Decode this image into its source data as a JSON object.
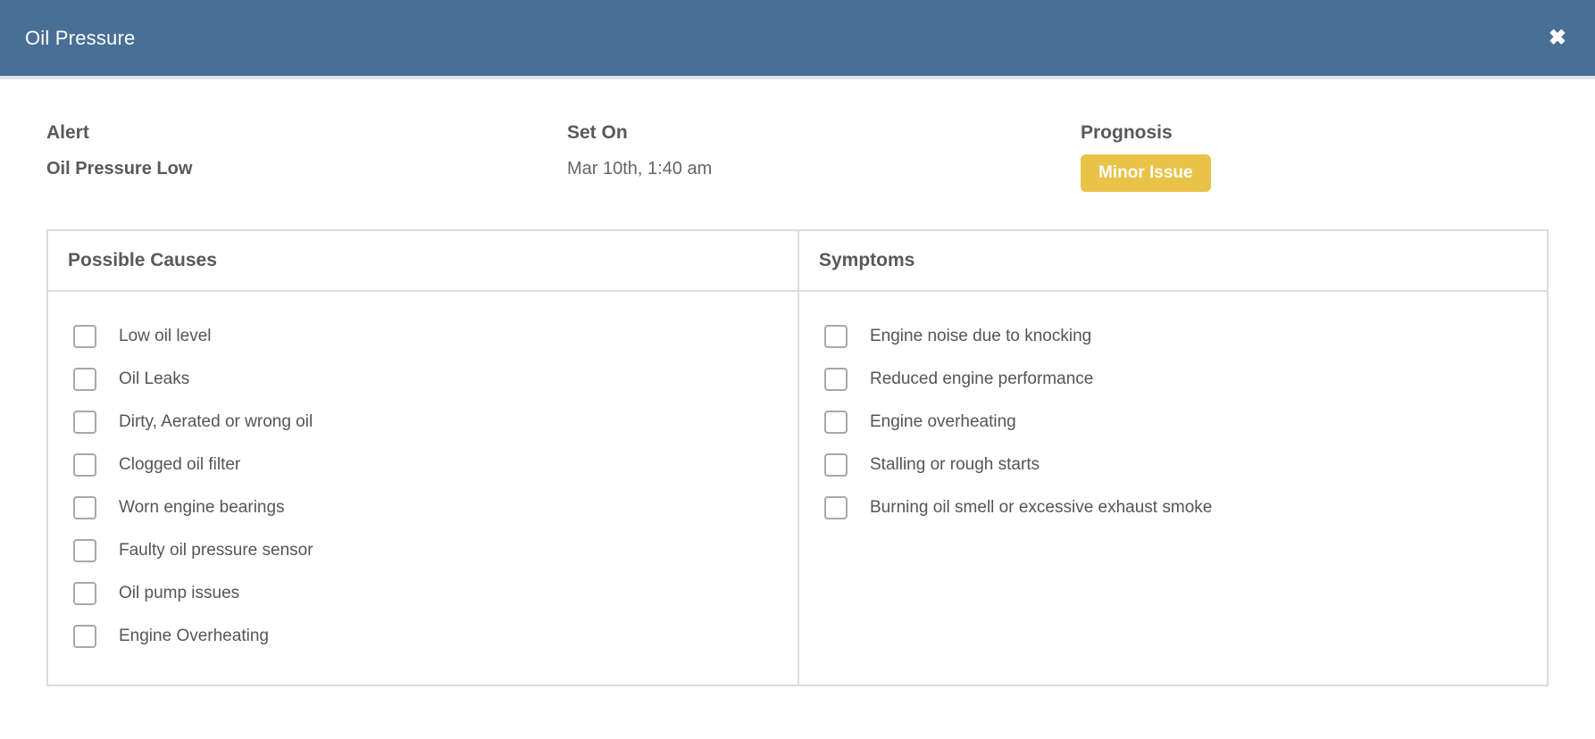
{
  "header": {
    "title": "Oil Pressure",
    "close_icon": "✖"
  },
  "info": {
    "alert_label": "Alert",
    "alert_value": "Oil Pressure Low",
    "set_on_label": "Set On",
    "set_on_value": "Mar 10th, 1:40 am",
    "prognosis_label": "Prognosis",
    "prognosis_value": "Minor Issue"
  },
  "colors": {
    "header_bg": "#4a6f96",
    "badge_bg": "#e9c348",
    "table_border": "#dcdcdc",
    "label_text": "#595959",
    "item_text": "#555555"
  },
  "table": {
    "columns": [
      {
        "header": "Possible Causes",
        "items": [
          "Low oil level",
          "Oil Leaks",
          "Dirty, Aerated or wrong oil",
          "Clogged oil filter",
          "Worn engine bearings",
          "Faulty oil pressure sensor",
          "Oil pump issues",
          "Engine Overheating"
        ]
      },
      {
        "header": "Symptoms",
        "items": [
          "Engine noise due to knocking",
          "Reduced engine performance",
          "Engine overheating",
          "Stalling or rough starts",
          "Burning oil smell or excessive exhaust smoke"
        ]
      }
    ]
  }
}
